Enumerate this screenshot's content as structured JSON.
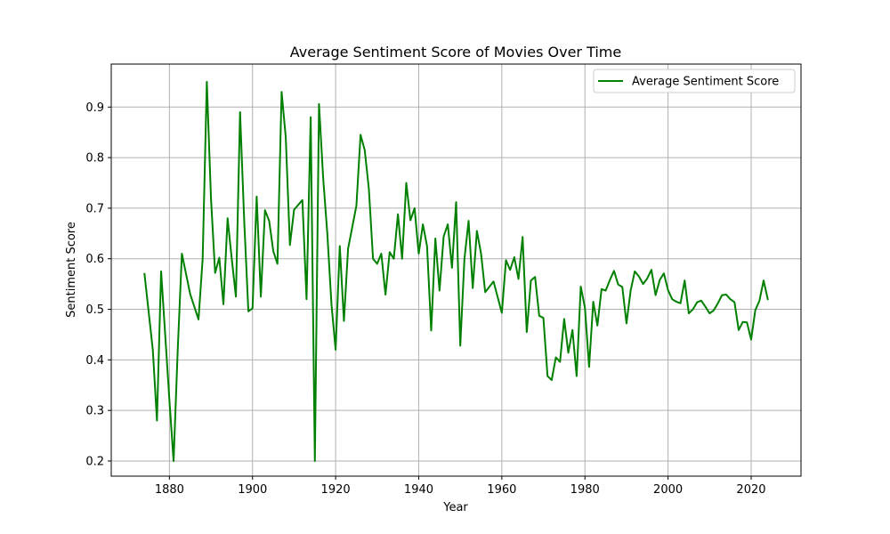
{
  "chart_data": {
    "type": "line",
    "title": "Average Sentiment Score of Movies Over Time",
    "xlabel": "Year",
    "ylabel": "Sentiment Score",
    "xlim": [
      1866,
      2032
    ],
    "ylim": [
      0.17,
      0.985
    ],
    "xticks": [
      1880,
      1900,
      1920,
      1940,
      1960,
      1980,
      2000,
      2020
    ],
    "yticks": [
      0.2,
      0.3,
      0.4,
      0.5,
      0.6,
      0.7,
      0.8,
      0.9
    ],
    "xtick_labels": [
      "1880",
      "1900",
      "1920",
      "1940",
      "1960",
      "1980",
      "2000",
      "2020"
    ],
    "ytick_labels": [
      "0.2",
      "0.3",
      "0.4",
      "0.5",
      "0.6",
      "0.7",
      "0.8",
      "0.9"
    ],
    "grid": true,
    "legend_position": "top-right",
    "series": [
      {
        "name": "Average Sentiment Score",
        "color": "#008000",
        "x": [
          1874,
          1876,
          1877,
          1878,
          1880,
          1881,
          1882,
          1883,
          1885,
          1887,
          1888,
          1889,
          1890,
          1891,
          1892,
          1893,
          1894,
          1895,
          1896,
          1897,
          1898,
          1899,
          1900,
          1901,
          1902,
          1903,
          1904,
          1905,
          1906,
          1907,
          1908,
          1909,
          1910,
          1912,
          1913,
          1914,
          1915,
          1916,
          1917,
          1918,
          1919,
          1920,
          1921,
          1922,
          1923,
          1925,
          1926,
          1927,
          1928,
          1929,
          1930,
          1931,
          1932,
          1933,
          1934,
          1935,
          1936,
          1937,
          1938,
          1939,
          1940,
          1941,
          1942,
          1943,
          1944,
          1945,
          1946,
          1947,
          1948,
          1949,
          1950,
          1951,
          1952,
          1953,
          1954,
          1955,
          1956,
          1958,
          1960,
          1961,
          1962,
          1963,
          1964,
          1965,
          1966,
          1967,
          1968,
          1969,
          1970,
          1971,
          1972,
          1973,
          1974,
          1975,
          1976,
          1977,
          1978,
          1979,
          1980,
          1981,
          1982,
          1983,
          1984,
          1985,
          1986,
          1987,
          1988,
          1989,
          1990,
          1991,
          1992,
          1993,
          1994,
          1995,
          1996,
          1997,
          1998,
          1999,
          2000,
          2001,
          2002,
          2003,
          2004,
          2005,
          2006,
          2007,
          2008,
          2009,
          2010,
          2011,
          2012,
          2013,
          2014,
          2015,
          2016,
          2017,
          2018,
          2019,
          2020,
          2021,
          2022,
          2023,
          2024
        ],
        "values": [
          0.57,
          0.42,
          0.28,
          0.575,
          0.32,
          0.2,
          0.42,
          0.61,
          0.53,
          0.48,
          0.6,
          0.95,
          0.72,
          0.572,
          0.602,
          0.51,
          0.68,
          0.6,
          0.525,
          0.89,
          0.675,
          0.496,
          0.502,
          0.723,
          0.525,
          0.696,
          0.675,
          0.615,
          0.59,
          0.93,
          0.84,
          0.627,
          0.697,
          0.716,
          0.52,
          0.88,
          0.2,
          0.906,
          0.76,
          0.65,
          0.51,
          0.42,
          0.625,
          0.477,
          0.62,
          0.705,
          0.845,
          0.815,
          0.738,
          0.6,
          0.59,
          0.61,
          0.529,
          0.613,
          0.6,
          0.688,
          0.6,
          0.75,
          0.676,
          0.7,
          0.61,
          0.668,
          0.625,
          0.458,
          0.64,
          0.537,
          0.644,
          0.668,
          0.582,
          0.712,
          0.428,
          0.6,
          0.675,
          0.542,
          0.655,
          0.61,
          0.534,
          0.555,
          0.493,
          0.597,
          0.578,
          0.603,
          0.56,
          0.643,
          0.455,
          0.557,
          0.564,
          0.487,
          0.483,
          0.368,
          0.36,
          0.405,
          0.396,
          0.481,
          0.414,
          0.459,
          0.368,
          0.545,
          0.503,
          0.386,
          0.515,
          0.468,
          0.54,
          0.537,
          0.558,
          0.576,
          0.549,
          0.544,
          0.472,
          0.537,
          0.575,
          0.565,
          0.55,
          0.561,
          0.578,
          0.528,
          0.558,
          0.571,
          0.538,
          0.52,
          0.515,
          0.512,
          0.557,
          0.492,
          0.5,
          0.514,
          0.517,
          0.505,
          0.492,
          0.498,
          0.512,
          0.528,
          0.529,
          0.52,
          0.514,
          0.459,
          0.475,
          0.474,
          0.44,
          0.498,
          0.517,
          0.557,
          0.52
        ]
      }
    ]
  }
}
